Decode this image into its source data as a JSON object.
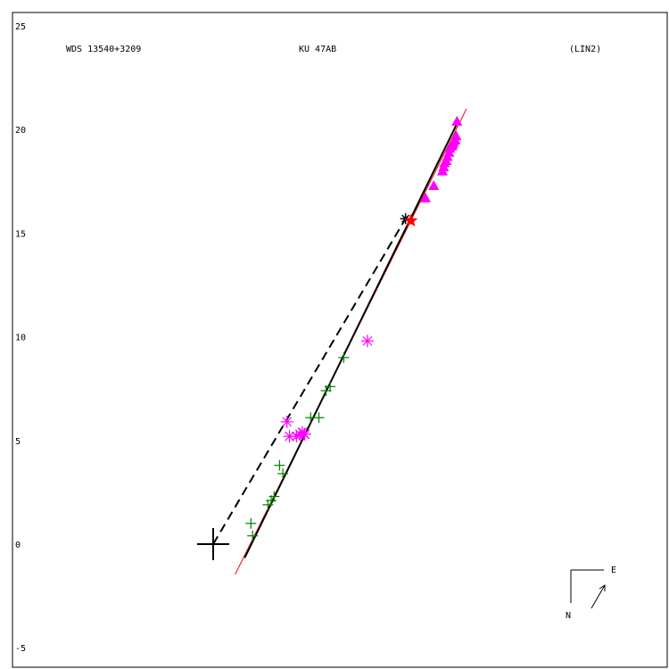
{
  "chart_data": {
    "type": "scatter",
    "header": {
      "left": "WDS 13540+3209",
      "center": "KU   47AB",
      "right": "(LIN2)"
    },
    "ylim": [
      -5,
      25
    ],
    "y_ticks": [
      "25",
      "20",
      "15",
      "10",
      "5",
      "0",
      "-5"
    ],
    "y_tick_values": [
      25,
      20,
      15,
      10,
      5,
      0,
      -5
    ],
    "grid": false,
    "orientation": {
      "e_label": "E",
      "n_label": "N"
    },
    "colors": {
      "triangles": "#ff00ff",
      "stars": "#ff00ff",
      "plus": "#008000",
      "fit_line": "#000000",
      "thin_line": "#ff0000",
      "current": "#ff0000"
    },
    "primary_marker": {
      "x": 0,
      "y": 0
    },
    "series": [
      {
        "marker": "triangle",
        "points": [
          [
            11.76,
            20.4
          ],
          [
            11.72,
            19.7
          ],
          [
            11.68,
            19.5
          ],
          [
            11.6,
            19.4
          ],
          [
            11.56,
            19.3
          ],
          [
            11.52,
            19.2
          ],
          [
            11.42,
            19.1
          ],
          [
            11.38,
            18.9
          ],
          [
            11.3,
            18.7
          ],
          [
            11.24,
            18.5
          ],
          [
            11.16,
            18.4
          ],
          [
            11.12,
            18.2
          ],
          [
            11.06,
            18.0
          ],
          [
            10.64,
            17.3
          ],
          [
            10.24,
            16.7
          ]
        ]
      },
      {
        "marker": "asterisk",
        "points": [
          [
            7.44,
            9.8
          ],
          [
            4.42,
            5.3
          ],
          [
            4.02,
            5.2
          ],
          [
            4.4,
            5.3
          ],
          [
            4.18,
            5.3
          ],
          [
            4.3,
            5.4
          ],
          [
            3.56,
            5.9
          ],
          [
            3.68,
            5.2
          ]
        ]
      },
      {
        "marker": "plus",
        "points": [
          [
            6.3,
            9.0
          ],
          [
            5.64,
            7.6
          ],
          [
            5.44,
            7.4
          ],
          [
            5.1,
            6.1
          ],
          [
            4.7,
            6.1
          ],
          [
            3.2,
            3.8
          ],
          [
            3.36,
            3.4
          ],
          [
            2.94,
            2.3
          ],
          [
            2.8,
            2.1
          ],
          [
            2.64,
            1.9
          ],
          [
            1.82,
            1.0
          ],
          [
            1.9,
            0.4
          ]
        ]
      }
    ],
    "fit_line": [
      [
        1.52,
        -0.66
      ],
      [
        11.72,
        20.2
      ]
    ],
    "thin_line": [
      [
        1.06,
        -1.46
      ],
      [
        12.22,
        21.0
      ]
    ],
    "dashed_line": [
      [
        0,
        0
      ],
      [
        9.28,
        15.7
      ]
    ],
    "current_position": [
      9.54,
      15.6
    ],
    "predicted_position": [
      9.28,
      15.7
    ]
  }
}
